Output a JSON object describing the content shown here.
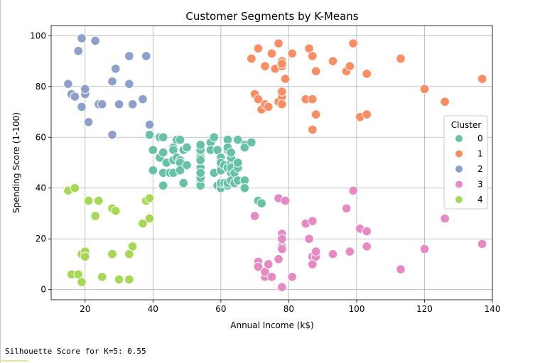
{
  "chart_data": {
    "type": "scatter",
    "title": "Customer Segments by K-Means",
    "xlabel": "Annual Income (k$)",
    "ylabel": "Spending Score (1-100)",
    "xlim": [
      10,
      140
    ],
    "ylim": [
      -4,
      104
    ],
    "xticks": [
      "20",
      "40",
      "60",
      "80",
      "100",
      "120",
      "140"
    ],
    "yticks": [
      "0",
      "20",
      "40",
      "60",
      "80",
      "100"
    ],
    "grid": true,
    "legend": {
      "title": "Cluster",
      "placement": "right"
    },
    "series": [
      {
        "name": "0",
        "color": "#66c2a5",
        "points": [
          [
            39,
            61
          ],
          [
            40,
            55
          ],
          [
            40,
            47
          ],
          [
            42,
            52
          ],
          [
            42,
            60
          ],
          [
            43,
            41
          ],
          [
            43,
            46
          ],
          [
            43,
            54
          ],
          [
            43,
            60
          ],
          [
            44,
            50
          ],
          [
            45,
            46
          ],
          [
            46,
            51
          ],
          [
            46,
            56
          ],
          [
            46,
            55
          ],
          [
            46,
            46
          ],
          [
            47,
            52
          ],
          [
            47,
            59
          ],
          [
            48,
            51
          ],
          [
            48,
            50
          ],
          [
            48,
            47
          ],
          [
            48,
            59
          ],
          [
            49,
            42
          ],
          [
            49,
            55
          ],
          [
            50,
            56
          ],
          [
            50,
            49
          ],
          [
            54,
            47
          ],
          [
            54,
            54
          ],
          [
            54,
            53
          ],
          [
            54,
            48
          ],
          [
            54,
            52
          ],
          [
            54,
            42
          ],
          [
            54,
            51
          ],
          [
            54,
            55
          ],
          [
            54,
            41
          ],
          [
            54,
            44
          ],
          [
            54,
            57
          ],
          [
            54,
            46
          ],
          [
            57,
            58
          ],
          [
            57,
            55
          ],
          [
            58,
            60
          ],
          [
            58,
            46
          ],
          [
            59,
            55
          ],
          [
            59,
            41
          ],
          [
            60,
            49
          ],
          [
            60,
            40
          ],
          [
            60,
            42
          ],
          [
            60,
            52
          ],
          [
            60,
            47
          ],
          [
            60,
            50
          ],
          [
            61,
            42
          ],
          [
            61,
            49
          ],
          [
            62,
            41
          ],
          [
            62,
            48
          ],
          [
            62,
            59
          ],
          [
            62,
            55
          ],
          [
            62,
            56
          ],
          [
            62,
            42
          ],
          [
            63,
            50
          ],
          [
            63,
            46
          ],
          [
            63,
            43
          ],
          [
            63,
            48
          ],
          [
            63,
            52
          ],
          [
            63,
            54
          ],
          [
            64,
            42
          ],
          [
            64,
            46
          ],
          [
            65,
            48
          ],
          [
            65,
            50
          ],
          [
            65,
            43
          ],
          [
            65,
            59
          ],
          [
            67,
            43
          ],
          [
            67,
            57
          ],
          [
            67,
            56
          ],
          [
            67,
            40
          ],
          [
            69,
            58
          ],
          [
            71,
            35
          ],
          [
            72,
            34
          ]
        ]
      },
      {
        "name": "1",
        "color": "#fc8d62",
        "points": [
          [
            69,
            91
          ],
          [
            70,
            77
          ],
          [
            71,
            95
          ],
          [
            71,
            75
          ],
          [
            72,
            71
          ],
          [
            73,
            88
          ],
          [
            73,
            73
          ],
          [
            74,
            72
          ],
          [
            75,
            93
          ],
          [
            76,
            87
          ],
          [
            77,
            97
          ],
          [
            77,
            74
          ],
          [
            78,
            90
          ],
          [
            78,
            88
          ],
          [
            78,
            76
          ],
          [
            78,
            89
          ],
          [
            78,
            78
          ],
          [
            78,
            73
          ],
          [
            79,
            83
          ],
          [
            81,
            93
          ],
          [
            85,
            75
          ],
          [
            86,
            95
          ],
          [
            87,
            63
          ],
          [
            87,
            75
          ],
          [
            87,
            92
          ],
          [
            88,
            86
          ],
          [
            88,
            69
          ],
          [
            93,
            90
          ],
          [
            97,
            86
          ],
          [
            98,
            88
          ],
          [
            99,
            97
          ],
          [
            101,
            68
          ],
          [
            103,
            85
          ],
          [
            103,
            69
          ],
          [
            113,
            91
          ],
          [
            120,
            79
          ],
          [
            126,
            74
          ],
          [
            137,
            83
          ]
        ]
      },
      {
        "name": "2",
        "color": "#8da0cb",
        "points": [
          [
            15,
            81
          ],
          [
            16,
            77
          ],
          [
            17,
            76
          ],
          [
            18,
            94
          ],
          [
            19,
            72
          ],
          [
            19,
            99
          ],
          [
            20,
            77
          ],
          [
            20,
            79
          ],
          [
            21,
            66
          ],
          [
            23,
            98
          ],
          [
            24,
            73
          ],
          [
            25,
            73
          ],
          [
            28,
            82
          ],
          [
            28,
            61
          ],
          [
            29,
            87
          ],
          [
            30,
            73
          ],
          [
            33,
            81
          ],
          [
            33,
            92
          ],
          [
            34,
            73
          ],
          [
            37,
            75
          ],
          [
            38,
            92
          ],
          [
            39,
            65
          ]
        ]
      },
      {
        "name": "3",
        "color": "#e78ac3",
        "points": [
          [
            70,
            29
          ],
          [
            71,
            11
          ],
          [
            71,
            9
          ],
          [
            73,
            5
          ],
          [
            73,
            7
          ],
          [
            74,
            10
          ],
          [
            75,
            5
          ],
          [
            77,
            12
          ],
          [
            77,
            36
          ],
          [
            78,
            22
          ],
          [
            78,
            17
          ],
          [
            78,
            20
          ],
          [
            78,
            16
          ],
          [
            78,
            1
          ],
          [
            79,
            35
          ],
          [
            81,
            5
          ],
          [
            85,
            26
          ],
          [
            86,
            20
          ],
          [
            87,
            27
          ],
          [
            87,
            13
          ],
          [
            87,
            10
          ],
          [
            88,
            13
          ],
          [
            88,
            15
          ],
          [
            93,
            14
          ],
          [
            97,
            32
          ],
          [
            98,
            15
          ],
          [
            99,
            39
          ],
          [
            101,
            24
          ],
          [
            103,
            17
          ],
          [
            103,
            23
          ],
          [
            113,
            8
          ],
          [
            120,
            16
          ],
          [
            126,
            28
          ],
          [
            137,
            18
          ]
        ]
      },
      {
        "name": "4",
        "color": "#a6d854",
        "points": [
          [
            15,
            39
          ],
          [
            16,
            6
          ],
          [
            17,
            40
          ],
          [
            18,
            6
          ],
          [
            19,
            3
          ],
          [
            19,
            14
          ],
          [
            20,
            15
          ],
          [
            20,
            13
          ],
          [
            21,
            35
          ],
          [
            23,
            29
          ],
          [
            24,
            35
          ],
          [
            25,
            5
          ],
          [
            28,
            14
          ],
          [
            28,
            32
          ],
          [
            29,
            31
          ],
          [
            30,
            4
          ],
          [
            33,
            4
          ],
          [
            33,
            14
          ],
          [
            34,
            17
          ],
          [
            37,
            26
          ],
          [
            38,
            35
          ],
          [
            39,
            36
          ],
          [
            39,
            28
          ]
        ]
      }
    ]
  },
  "output_text": "Silhouette Score for K=5: 0.55"
}
